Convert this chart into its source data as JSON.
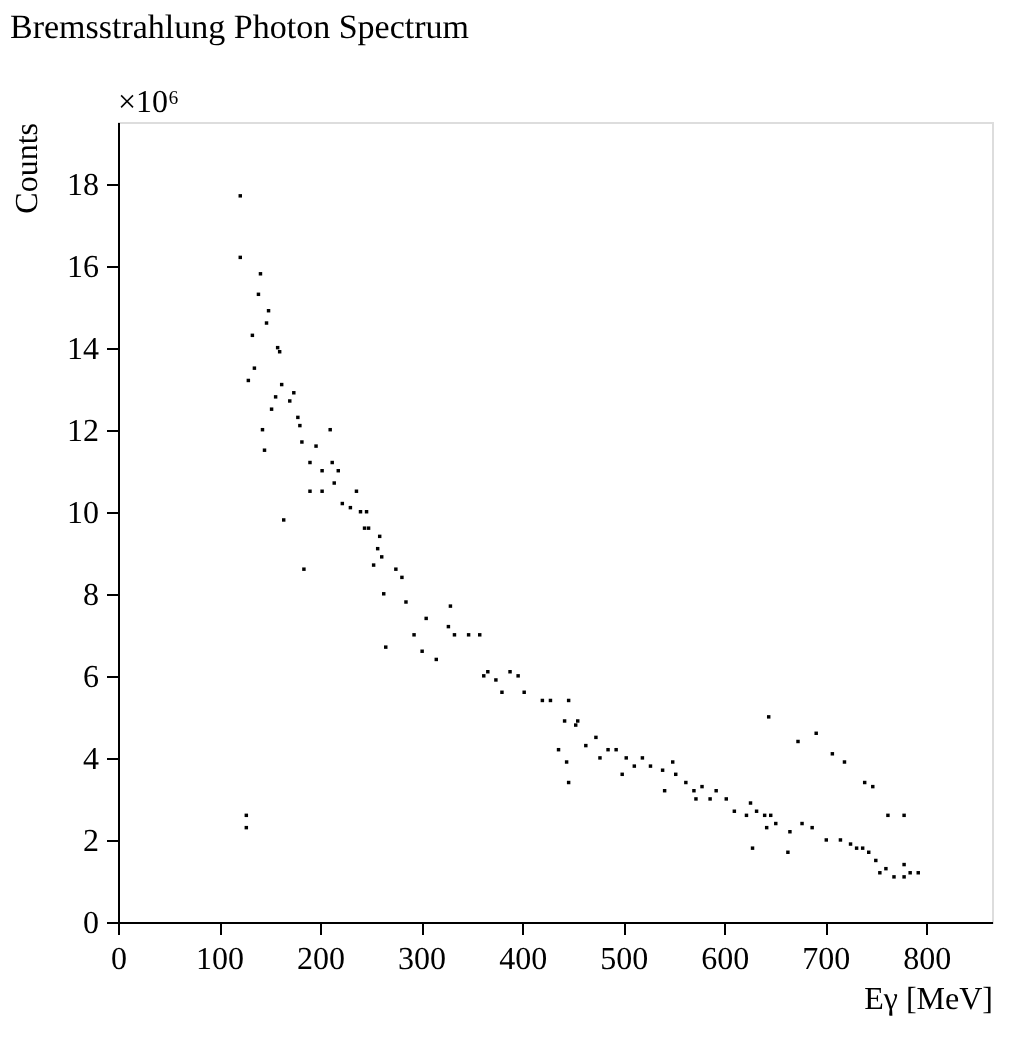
{
  "chart_data": {
    "type": "scatter",
    "title": "Bremsstrahlung Photon Spectrum",
    "xlabel": "Eγ [MeV]",
    "ylabel": "Counts",
    "annotations": [
      "×10⁶"
    ],
    "x": [
      121,
      121,
      141,
      139,
      149,
      147,
      133,
      158,
      160,
      135,
      129,
      162,
      156,
      174,
      170,
      152,
      178,
      180,
      143,
      210,
      182,
      145,
      196,
      190,
      212,
      202,
      218,
      190,
      202,
      214,
      236,
      222,
      230,
      240,
      246,
      244,
      248,
      164,
      259,
      257,
      261,
      184,
      253,
      275,
      281,
      263,
      285,
      329,
      265,
      293,
      301,
      327,
      333,
      347,
      358,
      315,
      362,
      366,
      374,
      380,
      388,
      396,
      402,
      420,
      428,
      446,
      442,
      455,
      436,
      444,
      446,
      453,
      463,
      473,
      485,
      477,
      493,
      503,
      499,
      511,
      519,
      527,
      539,
      549,
      552,
      570,
      572,
      586,
      562,
      541,
      578,
      592,
      602,
      610,
      626,
      642,
      632,
      646,
      644,
      691,
      673,
      707,
      719,
      739,
      747,
      622,
      640,
      651,
      665,
      677,
      687,
      701,
      715,
      725,
      731,
      737,
      743,
      760,
      754,
      768,
      778,
      750,
      778,
      784,
      792,
      762,
      778,
      628,
      663,
      127,
      127,
      305
    ],
    "values": [
      17.7,
      16.2,
      15.8,
      15.3,
      14.9,
      14.6,
      14.3,
      14.0,
      13.9,
      13.5,
      13.2,
      13.1,
      12.8,
      12.9,
      12.7,
      12.5,
      12.3,
      12.1,
      12.0,
      12.0,
      11.7,
      11.5,
      11.6,
      11.2,
      11.2,
      11.0,
      11.0,
      10.5,
      10.5,
      10.7,
      10.5,
      10.2,
      10.1,
      10.0,
      10.0,
      9.6,
      9.6,
      9.8,
      9.4,
      9.1,
      8.9,
      8.6,
      8.7,
      8.6,
      8.4,
      8.0,
      7.8,
      7.7,
      6.7,
      7.0,
      6.6,
      7.2,
      7.0,
      7.0,
      7.0,
      6.4,
      6.0,
      6.1,
      5.9,
      5.6,
      6.1,
      6.0,
      5.6,
      5.4,
      5.4,
      5.4,
      4.9,
      4.9,
      4.2,
      3.9,
      3.4,
      4.8,
      4.3,
      4.5,
      4.2,
      4.0,
      4.2,
      4.0,
      3.6,
      3.8,
      4.0,
      3.8,
      3.7,
      3.9,
      3.6,
      3.2,
      3.0,
      3.0,
      3.4,
      3.2,
      3.3,
      3.2,
      3.0,
      2.7,
      2.9,
      2.3,
      2.7,
      2.6,
      5.0,
      4.6,
      4.4,
      4.1,
      3.9,
      3.4,
      3.3,
      2.6,
      2.6,
      2.4,
      2.2,
      2.4,
      2.3,
      2.0,
      2.0,
      1.9,
      1.8,
      1.8,
      1.7,
      1.3,
      1.2,
      1.1,
      1.4,
      1.5,
      1.1,
      1.2,
      1.2,
      2.6,
      2.6,
      1.8,
      1.7,
      2.6,
      2.3,
      7.4
    ],
    "color": "#000000",
    "marker": "square",
    "xlim": [
      0,
      865
    ],
    "ylim": [
      0,
      19.5
    ],
    "xticks": [
      0,
      100,
      200,
      300,
      400,
      500,
      600,
      700,
      800
    ],
    "yticks": [
      0,
      2,
      4,
      6,
      8,
      10,
      12,
      14,
      16,
      18
    ],
    "grid": false
  }
}
